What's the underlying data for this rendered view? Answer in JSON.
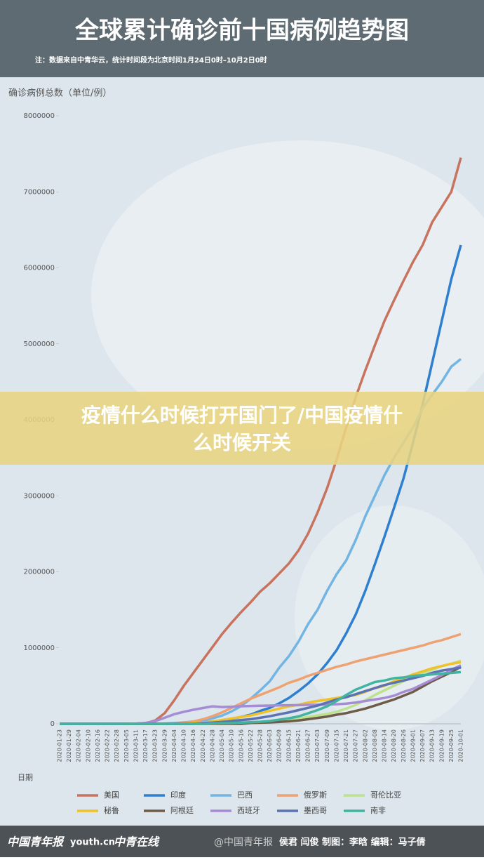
{
  "header": {
    "title": "全球累计确诊前十国病例趋势图",
    "note": "注：数据来自中青华云，统计时间段为北京时间1月24日0时–10月2日0时"
  },
  "banner": {
    "text_line1": "疫情什么时候打开国门了/中国疫情什",
    "text_line2": "么时候开关"
  },
  "footer": {
    "logo1": "中国青年报",
    "logo2": "youth.cn",
    "logo3": "中青在线",
    "watermark": "@中国青年报",
    "credits": "侯君 闫俊  制图：李晗  编辑：马子倩"
  },
  "chart_data": {
    "type": "line",
    "ylabel": "确诊病例总数（单位/例）",
    "xlabel": "日期",
    "ylim": [
      0,
      8000000
    ],
    "yticks": [
      0,
      1000000,
      2000000,
      3000000,
      4000000,
      5000000,
      6000000,
      7000000,
      8000000
    ],
    "grid": false,
    "legend": "bottom",
    "categories": [
      "2020-01-23",
      "2020-01-29",
      "2020-02-04",
      "2020-02-10",
      "2020-02-16",
      "2020-02-22",
      "2020-02-28",
      "2020-03-05",
      "2020-03-11",
      "2020-03-17",
      "2020-03-23",
      "2020-03-29",
      "2020-04-04",
      "2020-04-10",
      "2020-04-16",
      "2020-04-22",
      "2020-04-28",
      "2020-05-04",
      "2020-05-10",
      "2020-05-16",
      "2020-05-22",
      "2020-05-28",
      "2020-06-03",
      "2020-06-09",
      "2020-06-15",
      "2020-06-21",
      "2020-06-27",
      "2020-07-03",
      "2020-07-09",
      "2020-07-15",
      "2020-07-21",
      "2020-07-27",
      "2020-08-02",
      "2020-08-08",
      "2020-08-14",
      "2020-08-20",
      "2020-08-26",
      "2020-09-01",
      "2020-09-07",
      "2020-09-13",
      "2020-09-19",
      "2020-09-25",
      "2020-10-01"
    ],
    "series": [
      {
        "name": "美国",
        "color": "#c8735e",
        "values": [
          0,
          0,
          0,
          0,
          0,
          0,
          0,
          0,
          1000,
          6000,
          43000,
          140000,
          310000,
          500000,
          670000,
          840000,
          1010000,
          1180000,
          1330000,
          1470000,
          1600000,
          1740000,
          1850000,
          1980000,
          2110000,
          2280000,
          2500000,
          2780000,
          3100000,
          3480000,
          3900000,
          4300000,
          4650000,
          4980000,
          5300000,
          5570000,
          5830000,
          6080000,
          6300000,
          6600000,
          6800000,
          7000000,
          7450000
        ]
      },
      {
        "name": "印度",
        "color": "#2f7fd0",
        "values": [
          0,
          0,
          0,
          0,
          0,
          0,
          0,
          0,
          0,
          0,
          0,
          0,
          0,
          0,
          13000,
          20000,
          30000,
          45000,
          67000,
          90000,
          120000,
          170000,
          210000,
          270000,
          340000,
          430000,
          530000,
          650000,
          800000,
          970000,
          1190000,
          1440000,
          1750000,
          2100000,
          2460000,
          2840000,
          3230000,
          3700000,
          4200000,
          4750000,
          5300000,
          5850000,
          6300000
        ]
      },
      {
        "name": "巴西",
        "color": "#72b4e2",
        "values": [
          0,
          0,
          0,
          0,
          0,
          0,
          0,
          0,
          0,
          0,
          0,
          4000,
          9000,
          18000,
          30000,
          45000,
          72000,
          108000,
          163000,
          233000,
          330000,
          440000,
          560000,
          740000,
          890000,
          1080000,
          1310000,
          1500000,
          1750000,
          1970000,
          2150000,
          2420000,
          2730000,
          3000000,
          3270000,
          3500000,
          3700000,
          3900000,
          4150000,
          4330000,
          4500000,
          4700000,
          4800000
        ]
      },
      {
        "name": "俄罗斯",
        "color": "#efa271",
        "values": [
          0,
          0,
          0,
          0,
          0,
          0,
          0,
          0,
          0,
          0,
          0,
          0,
          4000,
          12000,
          30000,
          60000,
          100000,
          150000,
          210000,
          270000,
          330000,
          380000,
          430000,
          480000,
          540000,
          580000,
          630000,
          670000,
          710000,
          750000,
          780000,
          820000,
          850000,
          880000,
          910000,
          940000,
          970000,
          1000000,
          1030000,
          1070000,
          1100000,
          1140000,
          1180000
        ]
      },
      {
        "name": "哥伦比亚",
        "color": "#bde28e",
        "values": [
          0,
          0,
          0,
          0,
          0,
          0,
          0,
          0,
          0,
          0,
          0,
          0,
          0,
          0,
          0,
          0,
          0,
          0,
          10000,
          16000,
          20000,
          26000,
          35000,
          45000,
          55000,
          70000,
          90000,
          110000,
          130000,
          160000,
          200000,
          250000,
          310000,
          380000,
          440000,
          500000,
          560000,
          620000,
          670000,
          710000,
          760000,
          790000,
          830000
        ]
      },
      {
        "name": "秘鲁",
        "color": "#f0c22a",
        "values": [
          0,
          0,
          0,
          0,
          0,
          0,
          0,
          0,
          0,
          0,
          0,
          0,
          0,
          0,
          10000,
          17000,
          30000,
          50000,
          70000,
          90000,
          110000,
          140000,
          170000,
          200000,
          230000,
          250000,
          280000,
          300000,
          320000,
          340000,
          360000,
          380000,
          420000,
          470000,
          500000,
          560000,
          600000,
          650000,
          690000,
          730000,
          760000,
          790000,
          810000
        ]
      },
      {
        "name": "阿根廷",
        "color": "#6e5c48",
        "values": [
          0,
          0,
          0,
          0,
          0,
          0,
          0,
          0,
          0,
          0,
          0,
          0,
          0,
          0,
          0,
          0,
          0,
          0,
          0,
          0,
          10000,
          15000,
          20000,
          25000,
          32000,
          44000,
          60000,
          77000,
          95000,
          120000,
          140000,
          170000,
          200000,
          240000,
          280000,
          320000,
          370000,
          420000,
          490000,
          560000,
          620000,
          680000,
          750000
        ]
      },
      {
        "name": "西班牙",
        "color": "#a68cd4",
        "values": [
          0,
          0,
          0,
          0,
          0,
          0,
          0,
          0,
          2000,
          12000,
          35000,
          80000,
          126000,
          158000,
          185000,
          208000,
          230000,
          220000,
          224000,
          231000,
          234000,
          238000,
          240000,
          242000,
          244000,
          246000,
          249000,
          251000,
          254000,
          258000,
          266000,
          280000,
          300000,
          320000,
          340000,
          370000,
          420000,
          460000,
          520000,
          580000,
          640000,
          710000,
          770000
        ]
      },
      {
        "name": "墨西哥",
        "color": "#5c72b2",
        "values": [
          0,
          0,
          0,
          0,
          0,
          0,
          0,
          0,
          0,
          0,
          0,
          0,
          0,
          0,
          0,
          10000,
          16000,
          25000,
          35000,
          50000,
          60000,
          80000,
          100000,
          125000,
          150000,
          180000,
          210000,
          240000,
          280000,
          320000,
          350000,
          390000,
          430000,
          470000,
          510000,
          540000,
          570000,
          600000,
          630000,
          670000,
          700000,
          720000,
          740000
        ]
      },
      {
        "name": "南非",
        "color": "#42b3a0",
        "values": [
          0,
          0,
          0,
          0,
          0,
          0,
          0,
          0,
          0,
          0,
          0,
          0,
          0,
          0,
          0,
          0,
          5000,
          8000,
          10000,
          16000,
          21000,
          27000,
          37000,
          55000,
          73000,
          97000,
          138000,
          180000,
          230000,
          300000,
          380000,
          450000,
          500000,
          550000,
          570000,
          600000,
          610000,
          630000,
          640000,
          650000,
          660000,
          670000,
          680000
        ]
      }
    ]
  }
}
